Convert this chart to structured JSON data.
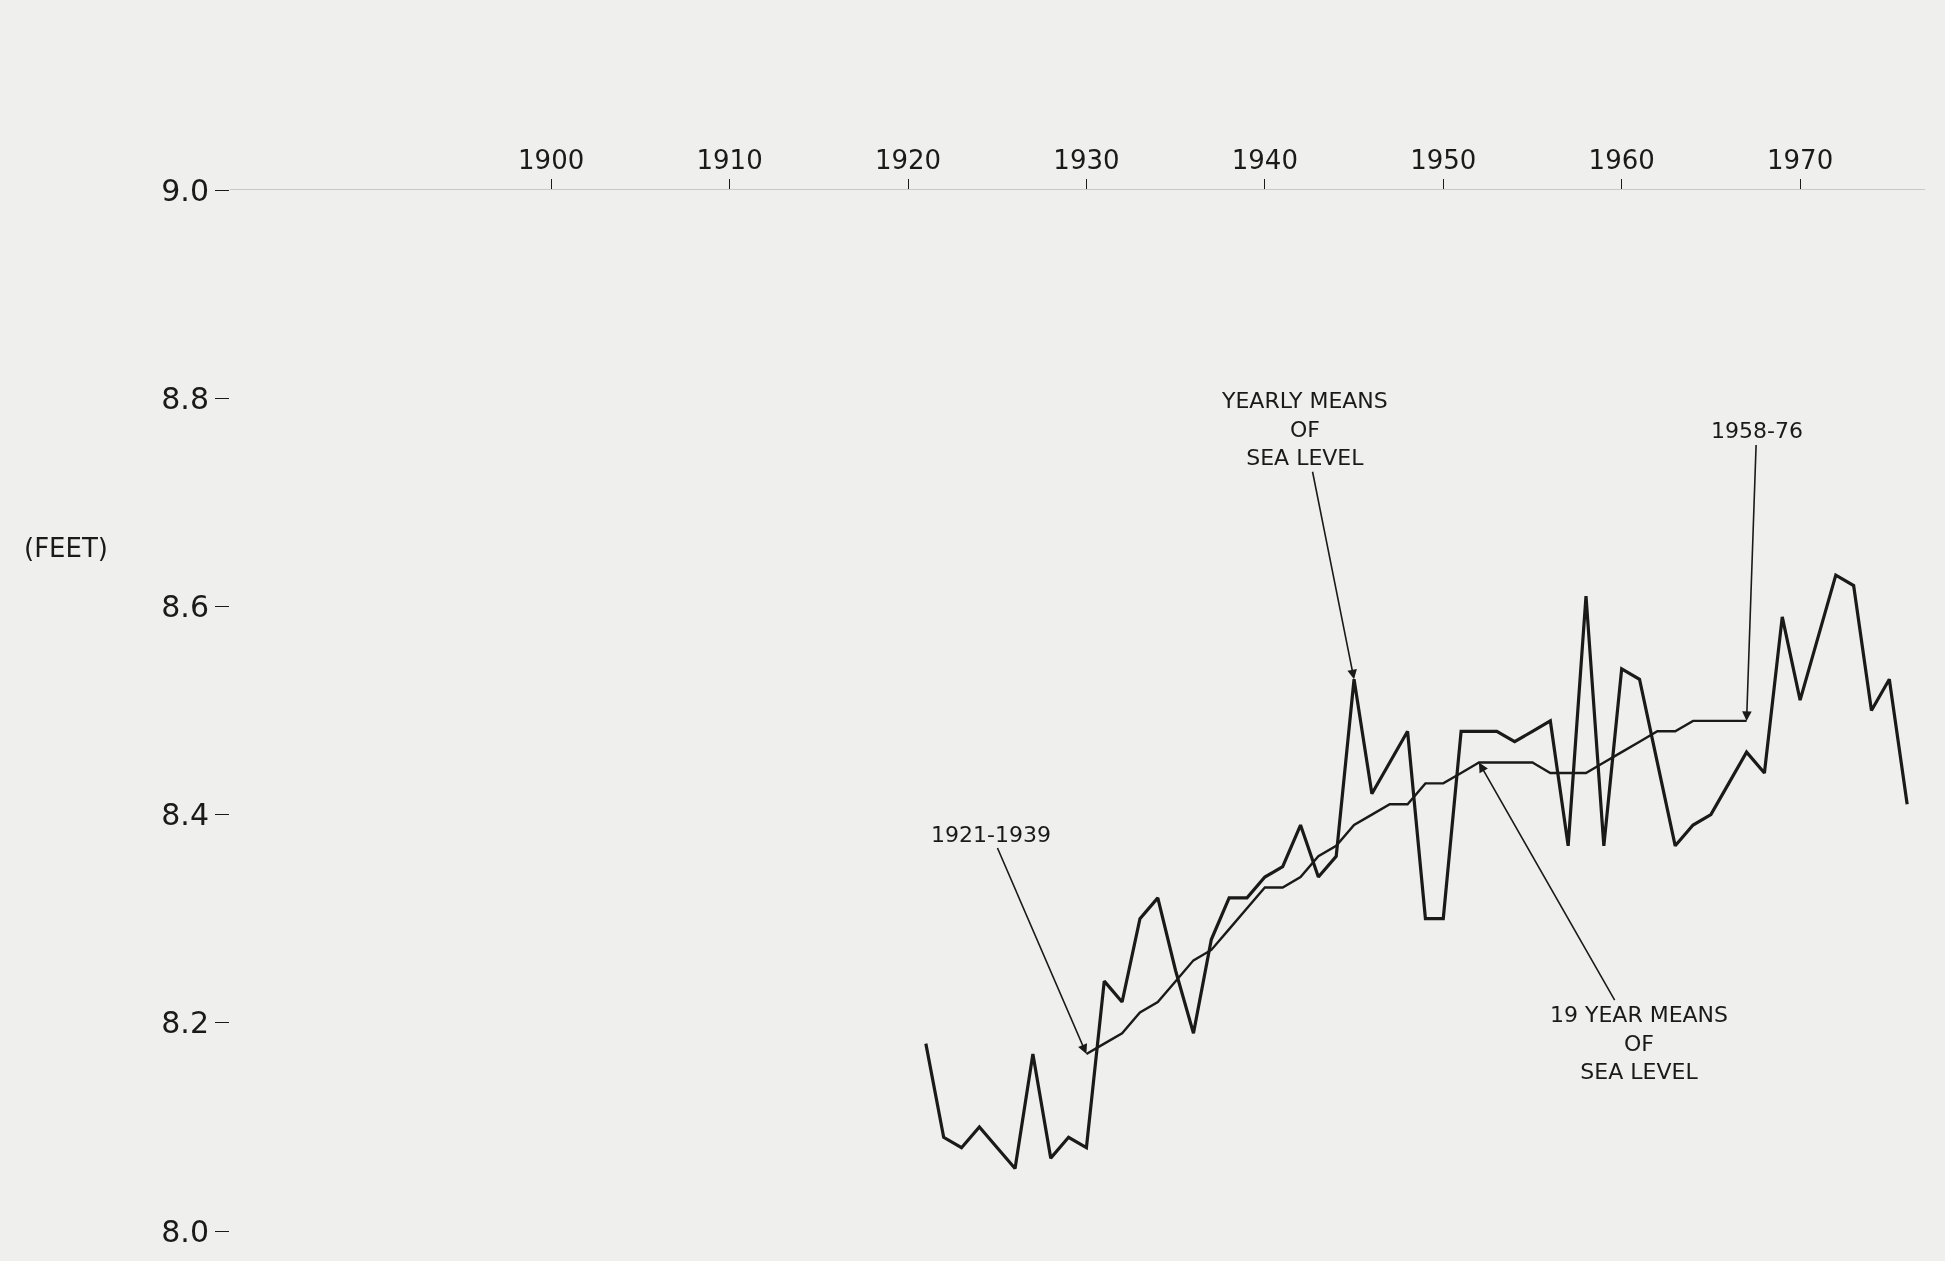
{
  "chart_data": {
    "type": "line",
    "ylabel": "(FEET)",
    "series": [
      {
        "color": "#1a1a1a",
        "x": [
          1921,
          1922,
          1923,
          1924,
          1925,
          1926,
          1927,
          1928,
          1929,
          1930,
          1931,
          1932,
          1933,
          1934,
          1935,
          1936,
          1937,
          1938,
          1939,
          1940,
          1941,
          1942,
          1943,
          1944,
          1945,
          1946,
          1947,
          1948,
          1949,
          1950,
          1951,
          1952,
          1953,
          1954,
          1955,
          1956,
          1957,
          1958,
          1959,
          1960,
          1961,
          1962,
          1963,
          1964,
          1965,
          1966,
          1967,
          1968,
          1969,
          1970,
          1971,
          1972,
          1973,
          1974,
          1975,
          1976
        ],
        "values": [
          8.18,
          8.09,
          8.08,
          8.1,
          8.08,
          8.06,
          8.17,
          8.07,
          8.09,
          8.08,
          8.24,
          8.22,
          8.3,
          8.32,
          8.25,
          8.19,
          8.28,
          8.32,
          8.32,
          8.34,
          8.35,
          8.39,
          8.34,
          8.36,
          8.53,
          8.42,
          8.45,
          8.48,
          8.3,
          8.3,
          8.48,
          8.48,
          8.48,
          8.47,
          8.48,
          8.49,
          8.37,
          8.61,
          8.37,
          8.54,
          8.53,
          8.45,
          8.37,
          8.39,
          8.4,
          8.43,
          8.46,
          8.44,
          8.59,
          8.51,
          8.57,
          8.63,
          8.62,
          8.5,
          8.53,
          8.41
        ]
      },
      {
        "color": "#1a1a1a",
        "x": [
          1930,
          1931,
          1932,
          1933,
          1934,
          1935,
          1936,
          1937,
          1938,
          1939,
          1940,
          1941,
          1942,
          1943,
          1944,
          1945,
          1946,
          1947,
          1948,
          1949,
          1950,
          1951,
          1952,
          1953,
          1954,
          1955,
          1956,
          1957,
          1958,
          1959,
          1960,
          1961,
          1962,
          1963,
          1964,
          1965,
          1966,
          1967
        ],
        "values": [
          8.17,
          8.18,
          8.19,
          8.21,
          8.22,
          8.24,
          8.26,
          8.27,
          8.29,
          8.31,
          8.33,
          8.33,
          8.34,
          8.36,
          8.37,
          8.39,
          8.4,
          8.41,
          8.41,
          8.43,
          8.43,
          8.44,
          8.45,
          8.45,
          8.45,
          8.45,
          8.44,
          8.44,
          8.44,
          8.45,
          8.46,
          8.47,
          8.48,
          8.48,
          8.49,
          8.49,
          8.49,
          8.49
        ]
      }
    ],
    "annotations": [
      {
        "text": "YEARLY MEANS\nOF\nSEA LEVEL",
        "x": 1945,
        "y": 8.53
      },
      {
        "text": "1921-1939",
        "x": 1930,
        "y": 8.17
      },
      {
        "text": "1958-76",
        "x": 1967,
        "y": 8.49
      },
      {
        "text": "19 YEAR MEANS\nOF\nSEA LEVEL",
        "x": 1952,
        "y": 8.45
      }
    ],
    "xlim": [
      1882,
      1977
    ],
    "xticks": [
      1900,
      1910,
      1920,
      1930,
      1940,
      1950,
      1960,
      1970
    ],
    "ylim": [
      8.0,
      9.0
    ],
    "yticks": [
      {
        "value": 8.0,
        "label": "8.0"
      },
      {
        "value": 8.2,
        "label": "8.2"
      },
      {
        "value": 8.4,
        "label": "8.4"
      },
      {
        "value": 8.6,
        "label": "8.6"
      },
      {
        "value": 8.8,
        "label": "8.8"
      },
      {
        "value": 9.0,
        "label": "9.0"
      }
    ],
    "grid": false,
    "marker": "none",
    "line_style": "solid"
  }
}
